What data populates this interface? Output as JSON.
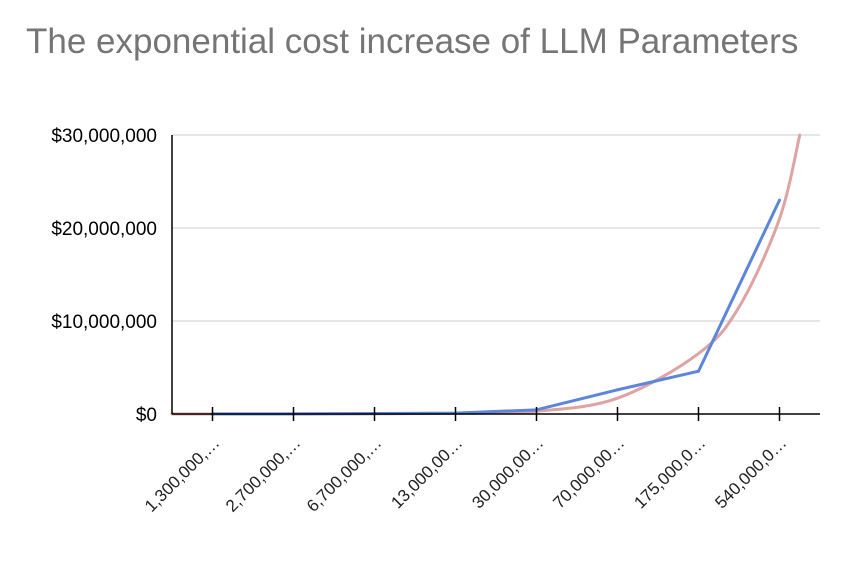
{
  "chart_data": {
    "type": "line",
    "title": "The exponential cost increase of LLM Parameters",
    "xlabel": "",
    "ylabel": "",
    "categories": [
      "1,300,000,…",
      "2,700,000,…",
      "6,700,000,…",
      "13,000,00…",
      "30,000,00…",
      "70,000,00…",
      "175,000,0…",
      "540,000,0…"
    ],
    "y_tick_labels": [
      "$0",
      "$10,000,000",
      "$20,000,000",
      "$30,000,000"
    ],
    "y_ticks": [
      0,
      10000000,
      20000000,
      30000000
    ],
    "ylim": [
      0,
      30000000
    ],
    "grid": true,
    "legend": "none",
    "series": [
      {
        "values": [
          10000,
          20000,
          50000,
          100000,
          450000,
          2600000,
          4600000,
          23000000
        ],
        "color": "#5b86dc"
      }
    ],
    "trendline": {
      "kind": "exponential",
      "color": "#e0a3a3",
      "points": [
        [
          -0.5,
          0
        ],
        [
          0,
          2000
        ],
        [
          1,
          9000
        ],
        [
          2,
          20000
        ],
        [
          3,
          80000
        ],
        [
          4,
          300000
        ],
        [
          5,
          1700000
        ],
        [
          6,
          6500000
        ],
        [
          6.5,
          11500000
        ],
        [
          7,
          21000000
        ],
        [
          7.25,
          30000000
        ]
      ]
    }
  }
}
